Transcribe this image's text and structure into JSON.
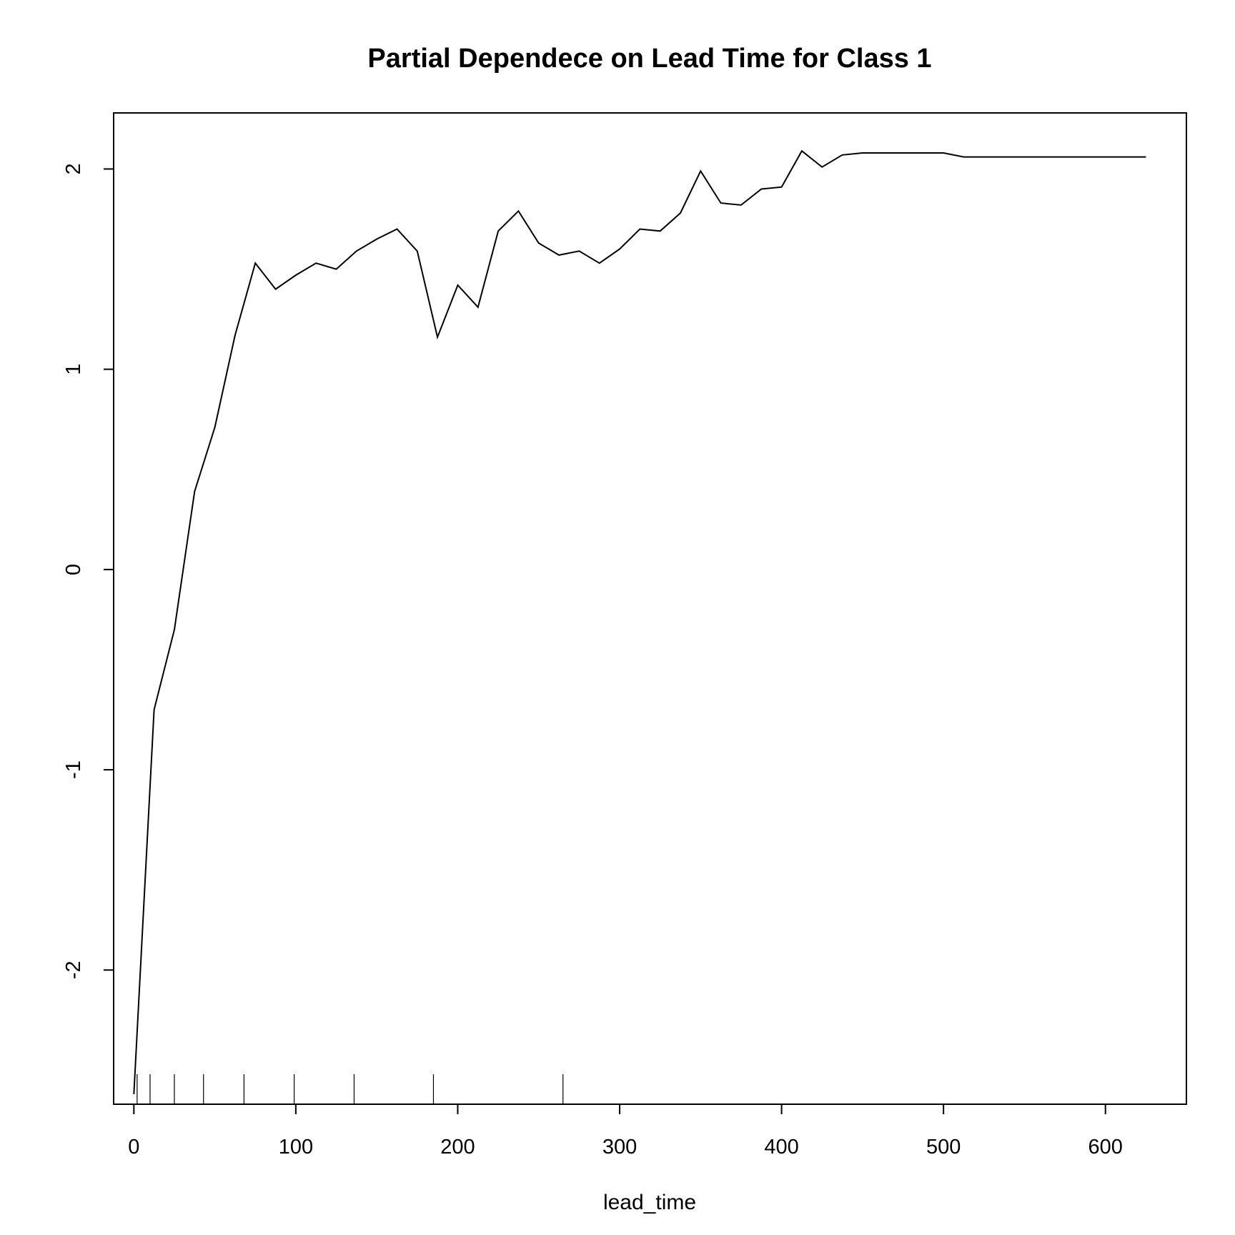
{
  "chart_data": {
    "type": "line",
    "title": "Partial Dependece on Lead Time for Class 1",
    "xlabel": "lead_time",
    "ylabel": "",
    "xlim": [
      -12.5,
      650
    ],
    "ylim": [
      -2.67,
      2.28
    ],
    "xticks": [
      0,
      100,
      200,
      300,
      400,
      500,
      600
    ],
    "xtick_labels": [
      "0",
      "100",
      "200",
      "300",
      "400",
      "500",
      "600"
    ],
    "yticks": [
      -2,
      -1,
      0,
      1,
      2
    ],
    "ytick_labels": [
      "-2",
      "-1",
      "0",
      "1",
      "2"
    ],
    "grid": false,
    "legend": "none",
    "series": [
      {
        "x": [
          0,
          12.5,
          25,
          37.5,
          50,
          62.5,
          75,
          87.5,
          100,
          112.5,
          125,
          137.5,
          150,
          162.5,
          175,
          187.5,
          200,
          212.5,
          225,
          237.5,
          250,
          262.5,
          275,
          287.5,
          300,
          312.5,
          325,
          337.5,
          350,
          362.5,
          375,
          387.5,
          400,
          412.5,
          425,
          437.5,
          450,
          462.5,
          475,
          487.5,
          500,
          512.5,
          525,
          537.5,
          550,
          562.5,
          575,
          587.5,
          600,
          612.5,
          625
        ],
        "values": [
          -2.62,
          -0.7,
          -0.3,
          0.39,
          0.71,
          1.17,
          1.53,
          1.4,
          1.47,
          1.53,
          1.5,
          1.59,
          1.65,
          1.7,
          1.59,
          1.16,
          1.42,
          1.31,
          1.69,
          1.79,
          1.63,
          1.57,
          1.59,
          1.53,
          1.6,
          1.7,
          1.69,
          1.78,
          1.99,
          1.83,
          1.82,
          1.9,
          1.91,
          2.09,
          2.01,
          2.07,
          2.08,
          2.08,
          2.08,
          2.08,
          2.08,
          2.06,
          2.06,
          2.06,
          2.06,
          2.06,
          2.06,
          2.06,
          2.06,
          2.06,
          2.06
        ]
      }
    ],
    "rug": [
      2,
      10,
      25,
      43,
      68,
      99,
      136,
      185,
      265
    ]
  }
}
